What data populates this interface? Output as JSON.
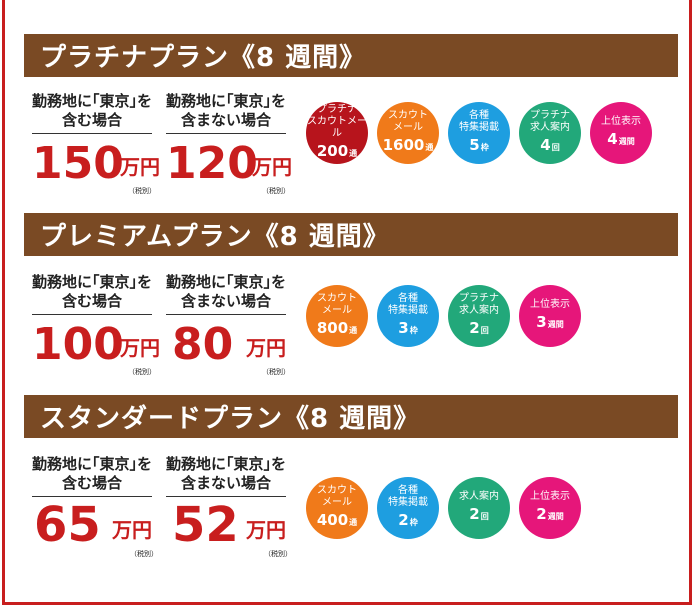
{
  "colors": {
    "frame": "#c81e1e",
    "header_bg": "#7a4a24",
    "price": "#c81e1e",
    "badge_darkred": "#b7141c",
    "badge_orange": "#f07a1a",
    "badge_blue": "#1e9ee0",
    "badge_green": "#22a87a",
    "badge_pink": "#e6167a"
  },
  "plans": [
    {
      "title": "プラチナプラン《8 週間》",
      "tokyo_label": "勤務地に｢東京｣を\n含む場合",
      "non_tokyo_label": "勤務地に｢東京｣を\n含まない場合",
      "tokyo_price": "150",
      "non_tokyo_price": "120",
      "unit": "万円",
      "tax_note": "（税別）",
      "badges": [
        {
          "label": "プラチナ\nスカウトメール",
          "num": "200",
          "unit": "通",
          "color": "#b7141c"
        },
        {
          "label": "スカウト\nメール",
          "num": "1600",
          "unit": "通",
          "color": "#f07a1a"
        },
        {
          "label": "各種\n特集掲載",
          "num": "5",
          "unit": "枠",
          "color": "#1e9ee0"
        },
        {
          "label": "プラチナ\n求人案内",
          "num": "4",
          "unit": "回",
          "color": "#22a87a"
        },
        {
          "label": "上位表示",
          "num": "4",
          "unit": "週間",
          "color": "#e6167a"
        }
      ]
    },
    {
      "title": "プレミアムプラン《8 週間》",
      "tokyo_label": "勤務地に｢東京｣を\n含む場合",
      "non_tokyo_label": "勤務地に｢東京｣を\n含まない場合",
      "tokyo_price": "100",
      "non_tokyo_price": "80",
      "unit": "万円",
      "tax_note": "（税別）",
      "badges": [
        {
          "label": "スカウト\nメール",
          "num": "800",
          "unit": "通",
          "color": "#f07a1a"
        },
        {
          "label": "各種\n特集掲載",
          "num": "3",
          "unit": "枠",
          "color": "#1e9ee0"
        },
        {
          "label": "プラチナ\n求人案内",
          "num": "2",
          "unit": "回",
          "color": "#22a87a"
        },
        {
          "label": "上位表示",
          "num": "3",
          "unit": "週間",
          "color": "#e6167a"
        }
      ]
    },
    {
      "title": "スタンダードプラン《8 週間》",
      "tokyo_label": "勤務地に｢東京｣を\n含む場合",
      "non_tokyo_label": "勤務地に｢東京｣を\n含まない場合",
      "tokyo_price": "65",
      "non_tokyo_price": "52",
      "unit": "万円",
      "tax_note": "（税別）",
      "badges": [
        {
          "label": "スカウト\nメール",
          "num": "400",
          "unit": "通",
          "color": "#f07a1a"
        },
        {
          "label": "各種\n特集掲載",
          "num": "2",
          "unit": "枠",
          "color": "#1e9ee0"
        },
        {
          "label": "求人案内",
          "num": "2",
          "unit": "回",
          "color": "#22a87a"
        },
        {
          "label": "上位表示",
          "num": "2",
          "unit": "週間",
          "color": "#e6167a"
        }
      ]
    }
  ]
}
